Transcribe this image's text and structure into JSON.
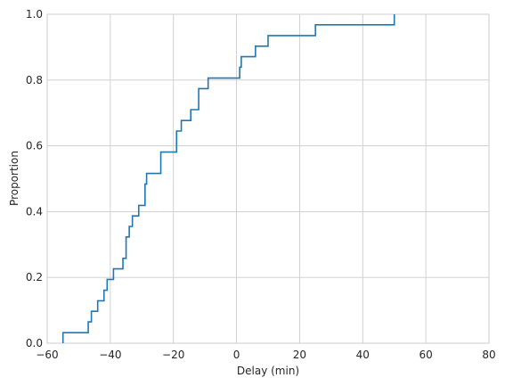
{
  "chart_data": {
    "type": "line",
    "subtype": "ecdf-step",
    "title": "",
    "xlabel": "Delay (min)",
    "ylabel": "Proportion",
    "xlim": [
      -60,
      80
    ],
    "ylim": [
      0,
      1.0
    ],
    "x_ticks": [
      -60,
      -40,
      -20,
      0,
      20,
      40,
      60,
      80
    ],
    "x_tick_labels": [
      "−60",
      "−40",
      "−20",
      "0",
      "20",
      "40",
      "60",
      "80"
    ],
    "y_ticks": [
      0,
      0.2,
      0.4,
      0.6,
      0.8,
      1.0
    ],
    "y_tick_labels": [
      "0.0",
      "0.2",
      "0.4",
      "0.6",
      "0.8",
      "1.0"
    ],
    "grid": true,
    "line_color": "#1f77b4",
    "series": [
      {
        "x": [
          -55,
          -47,
          -46,
          -44,
          -42,
          -41,
          -39,
          -36,
          -35,
          -34,
          -33,
          -31,
          -29,
          -28.5,
          -28,
          -24,
          -19.5,
          -19,
          -17.5,
          -14.5,
          -12,
          -9,
          1,
          1.5,
          6,
          10,
          25,
          50
        ],
        "y": [
          0.032,
          0.065,
          0.097,
          0.129,
          0.161,
          0.194,
          0.226,
          0.258,
          0.323,
          0.355,
          0.387,
          0.419,
          0.484,
          0.516,
          0.516,
          0.581,
          0.581,
          0.645,
          0.677,
          0.71,
          0.774,
          0.806,
          0.839,
          0.871,
          0.903,
          0.935,
          0.968,
          1.0
        ]
      }
    ]
  }
}
